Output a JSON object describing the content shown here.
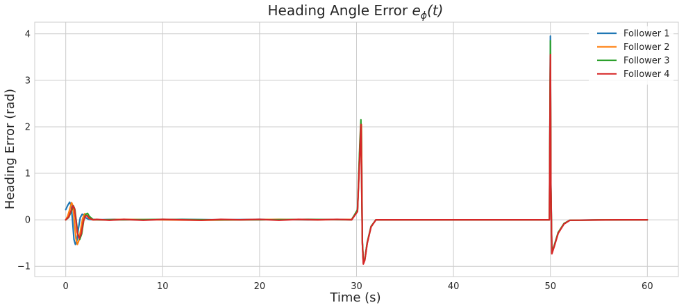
{
  "chart_data": {
    "type": "line",
    "title_text": "Heading Angle Error ",
    "title_math": "e",
    "title_sub": "ϕ",
    "title_tail": "(t)",
    "xlabel": "Time (s)",
    "ylabel": "Heading Error (rad)",
    "xlim": [
      -3.2,
      63.2
    ],
    "ylim": [
      -1.22,
      4.25
    ],
    "xticks": [
      0,
      10,
      20,
      30,
      40,
      50,
      60
    ],
    "yticks": [
      -1,
      0,
      1,
      2,
      3,
      4
    ],
    "xtick_labels": [
      "0",
      "10",
      "20",
      "30",
      "40",
      "50",
      "60"
    ],
    "ytick_labels": [
      "−1",
      "0",
      "1",
      "2",
      "3",
      "4"
    ],
    "grid": true,
    "legend_position": "top-right",
    "series": [
      {
        "name": "Follower 1",
        "color": "#1f77b4",
        "points": [
          [
            0,
            0.22
          ],
          [
            0.2,
            0.31
          ],
          [
            0.4,
            0.38
          ],
          [
            0.55,
            0.32
          ],
          [
            0.7,
            0.0
          ],
          [
            0.85,
            -0.42
          ],
          [
            1.0,
            -0.53
          ],
          [
            1.15,
            -0.45
          ],
          [
            1.3,
            -0.2
          ],
          [
            1.5,
            0.05
          ],
          [
            1.7,
            0.12
          ],
          [
            1.9,
            0.1
          ],
          [
            2.1,
            0.04
          ],
          [
            2.4,
            0.01
          ],
          [
            3,
            0
          ],
          [
            5,
            0.01
          ],
          [
            8,
            0
          ],
          [
            12,
            0.01
          ],
          [
            16,
            0
          ],
          [
            20,
            0.01
          ],
          [
            25,
            0
          ],
          [
            29.5,
            0.01
          ],
          [
            30.1,
            0.2
          ],
          [
            30.35,
            1.6
          ],
          [
            30.5,
            2.05
          ],
          [
            30.6,
            -0.5
          ],
          [
            30.7,
            -0.92
          ],
          [
            30.85,
            -0.85
          ],
          [
            31.1,
            -0.5
          ],
          [
            31.5,
            -0.15
          ],
          [
            32,
            0
          ],
          [
            35,
            0
          ],
          [
            40,
            0
          ],
          [
            45,
            0
          ],
          [
            49.9,
            0
          ],
          [
            50.0,
            3.95
          ],
          [
            50.05,
            0.8
          ],
          [
            50.15,
            -0.7
          ],
          [
            50.4,
            -0.55
          ],
          [
            50.8,
            -0.28
          ],
          [
            51.4,
            -0.08
          ],
          [
            52,
            -0.01
          ],
          [
            55,
            0
          ],
          [
            60,
            0
          ]
        ]
      },
      {
        "name": "Follower 2",
        "color": "#ff7f0e",
        "points": [
          [
            0,
            0
          ],
          [
            0.2,
            0.08
          ],
          [
            0.4,
            0.22
          ],
          [
            0.6,
            0.37
          ],
          [
            0.75,
            0.3
          ],
          [
            0.9,
            -0.05
          ],
          [
            1.05,
            -0.4
          ],
          [
            1.2,
            -0.53
          ],
          [
            1.35,
            -0.45
          ],
          [
            1.55,
            -0.2
          ],
          [
            1.75,
            0.03
          ],
          [
            1.95,
            0.13
          ],
          [
            2.15,
            0.1
          ],
          [
            2.4,
            0.03
          ],
          [
            2.8,
            0.0
          ],
          [
            4,
            0
          ],
          [
            6,
            0.01
          ],
          [
            10,
            0
          ],
          [
            14,
            -0.01
          ],
          [
            18,
            0
          ],
          [
            22,
            0.01
          ],
          [
            26,
            0
          ],
          [
            29.5,
            0.01
          ],
          [
            30.1,
            0.2
          ],
          [
            30.35,
            1.6
          ],
          [
            30.5,
            2.05
          ],
          [
            30.6,
            -0.5
          ],
          [
            30.7,
            -0.93
          ],
          [
            30.85,
            -0.86
          ],
          [
            31.1,
            -0.5
          ],
          [
            31.5,
            -0.15
          ],
          [
            32,
            0
          ],
          [
            36,
            0
          ],
          [
            42,
            0
          ],
          [
            49.9,
            0
          ],
          [
            50.0,
            3.6
          ],
          [
            50.05,
            0.7
          ],
          [
            50.15,
            -0.72
          ],
          [
            50.4,
            -0.56
          ],
          [
            50.8,
            -0.28
          ],
          [
            51.4,
            -0.08
          ],
          [
            52,
            -0.01
          ],
          [
            56,
            0
          ],
          [
            60,
            0
          ]
        ]
      },
      {
        "name": "Follower 3",
        "color": "#2ca02c",
        "points": [
          [
            0,
            0
          ],
          [
            0.3,
            0.05
          ],
          [
            0.6,
            0.2
          ],
          [
            0.8,
            0.3
          ],
          [
            0.95,
            0.22
          ],
          [
            1.1,
            -0.05
          ],
          [
            1.25,
            -0.3
          ],
          [
            1.45,
            -0.42
          ],
          [
            1.65,
            -0.3
          ],
          [
            1.85,
            -0.02
          ],
          [
            2.05,
            0.12
          ],
          [
            2.25,
            0.14
          ],
          [
            2.45,
            0.07
          ],
          [
            2.8,
            0.01
          ],
          [
            3.5,
            0
          ],
          [
            6,
            0
          ],
          [
            10,
            0.01
          ],
          [
            15,
            0
          ],
          [
            20,
            0
          ],
          [
            25,
            0.01
          ],
          [
            29.5,
            0
          ],
          [
            30.1,
            0.22
          ],
          [
            30.35,
            1.7
          ],
          [
            30.45,
            2.15
          ],
          [
            30.6,
            -0.45
          ],
          [
            30.7,
            -0.9
          ],
          [
            30.85,
            -0.84
          ],
          [
            31.1,
            -0.48
          ],
          [
            31.5,
            -0.14
          ],
          [
            32,
            0
          ],
          [
            38,
            0
          ],
          [
            44,
            0
          ],
          [
            49.9,
            0
          ],
          [
            50.0,
            3.85
          ],
          [
            50.05,
            0.75
          ],
          [
            50.15,
            -0.7
          ],
          [
            50.4,
            -0.55
          ],
          [
            50.8,
            -0.27
          ],
          [
            51.4,
            -0.08
          ],
          [
            52,
            -0.01
          ],
          [
            58,
            0
          ],
          [
            60,
            0
          ]
        ]
      },
      {
        "name": "Follower 4",
        "color": "#d62728",
        "points": [
          [
            0,
            0
          ],
          [
            0.3,
            0.06
          ],
          [
            0.55,
            0.2
          ],
          [
            0.75,
            0.3
          ],
          [
            0.9,
            0.25
          ],
          [
            1.05,
            0.0
          ],
          [
            1.2,
            -0.28
          ],
          [
            1.4,
            -0.4
          ],
          [
            1.6,
            -0.3
          ],
          [
            1.8,
            -0.05
          ],
          [
            2.0,
            0.08
          ],
          [
            2.2,
            0.09
          ],
          [
            2.4,
            0.04
          ],
          [
            2.8,
            0.0
          ],
          [
            3.2,
            0.01
          ],
          [
            4.5,
            -0.01
          ],
          [
            6,
            0.01
          ],
          [
            8,
            -0.01
          ],
          [
            10,
            0.01
          ],
          [
            12,
            0
          ],
          [
            14,
            -0.01
          ],
          [
            16,
            0.01
          ],
          [
            18,
            0
          ],
          [
            20,
            0.01
          ],
          [
            22,
            -0.01
          ],
          [
            24,
            0.01
          ],
          [
            26,
            0
          ],
          [
            28,
            0.01
          ],
          [
            29.5,
            0
          ],
          [
            30.1,
            0.18
          ],
          [
            30.35,
            1.5
          ],
          [
            30.45,
            2.05
          ],
          [
            30.6,
            -0.5
          ],
          [
            30.7,
            -0.95
          ],
          [
            30.85,
            -0.87
          ],
          [
            31.1,
            -0.5
          ],
          [
            31.5,
            -0.15
          ],
          [
            32,
            0
          ],
          [
            37,
            0
          ],
          [
            43,
            0
          ],
          [
            49.9,
            0
          ],
          [
            50.0,
            3.55
          ],
          [
            50.05,
            0.7
          ],
          [
            50.15,
            -0.73
          ],
          [
            50.4,
            -0.57
          ],
          [
            50.8,
            -0.29
          ],
          [
            51.4,
            -0.09
          ],
          [
            52,
            -0.01
          ],
          [
            57,
            0
          ],
          [
            60,
            0
          ]
        ]
      }
    ]
  }
}
